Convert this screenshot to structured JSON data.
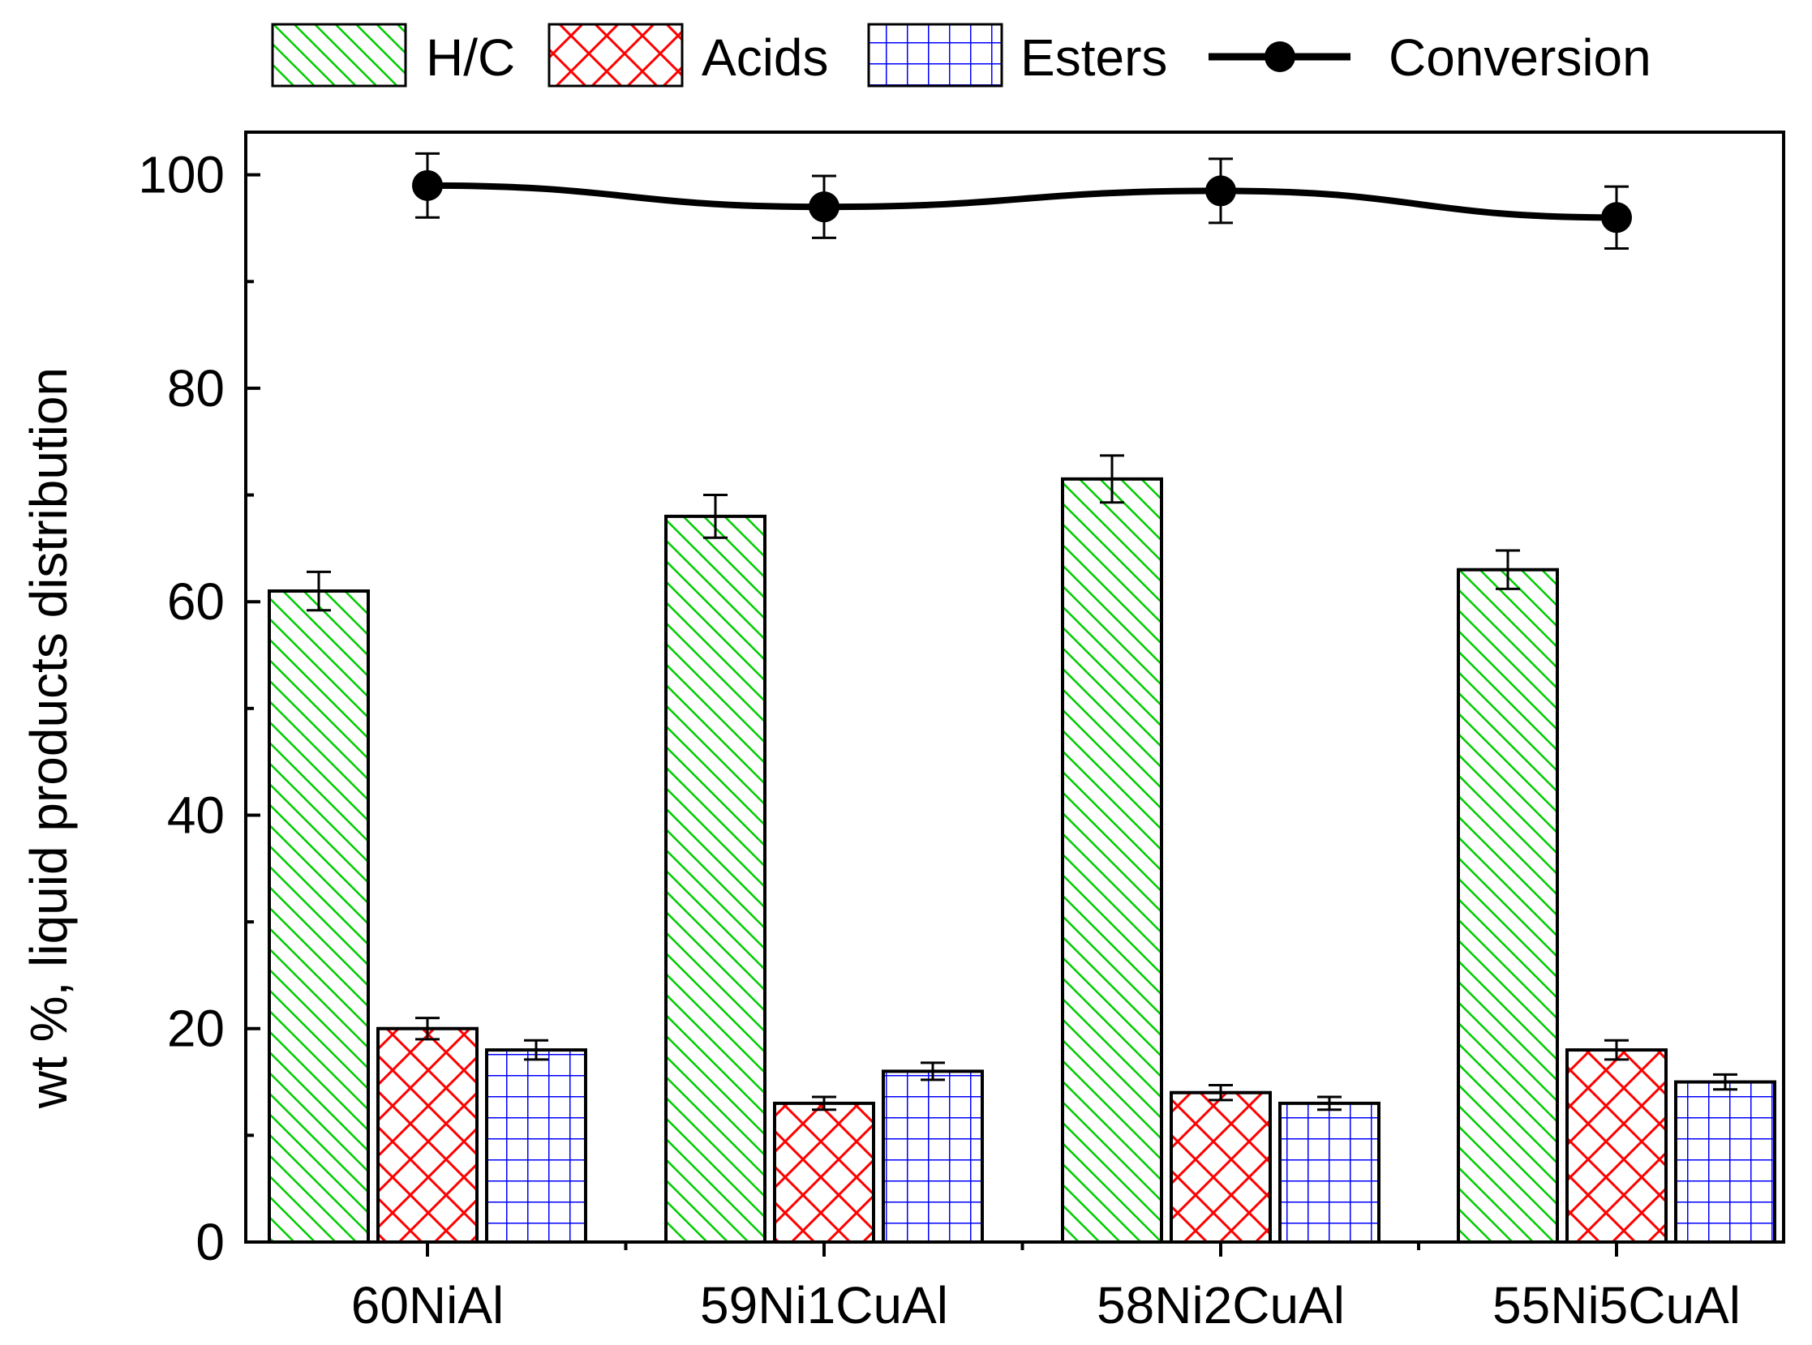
{
  "chart_data": {
    "type": "bar",
    "categories": [
      "60NiAl",
      "59Ni1CuAl",
      "58Ni2CuAl",
      "55Ni5CuAl"
    ],
    "series": [
      {
        "name": "H/C",
        "values": [
          61,
          68,
          71.5,
          63
        ],
        "errors": [
          1.8,
          2,
          2.2,
          1.8
        ],
        "color": "#00cc00",
        "pattern": "diagonal"
      },
      {
        "name": "Acids",
        "values": [
          20,
          13,
          14,
          18
        ],
        "errors": [
          1,
          0.6,
          0.7,
          0.9
        ],
        "color": "#ff0000",
        "pattern": "crosshatch"
      },
      {
        "name": "Esters",
        "values": [
          18,
          16,
          13,
          15
        ],
        "errors": [
          0.9,
          0.8,
          0.6,
          0.7
        ],
        "color": "#0000ff",
        "pattern": "grid"
      }
    ],
    "line_series": {
      "name": "Conversion",
      "values": [
        99,
        97,
        98.5,
        96
      ],
      "errors": [
        3,
        2.9,
        3,
        2.9
      ],
      "color": "#000000"
    },
    "ylabel": "wt %,  liquid products distribution",
    "xlabel": "",
    "ylim": [
      0,
      104
    ],
    "yticks": [
      "0",
      "20",
      "40",
      "60",
      "80",
      "100"
    ],
    "ytick_values": [
      0,
      20,
      40,
      60,
      80,
      100
    ],
    "yminor_values": [
      10,
      30,
      50,
      70,
      90
    ],
    "legend_position": "top"
  }
}
